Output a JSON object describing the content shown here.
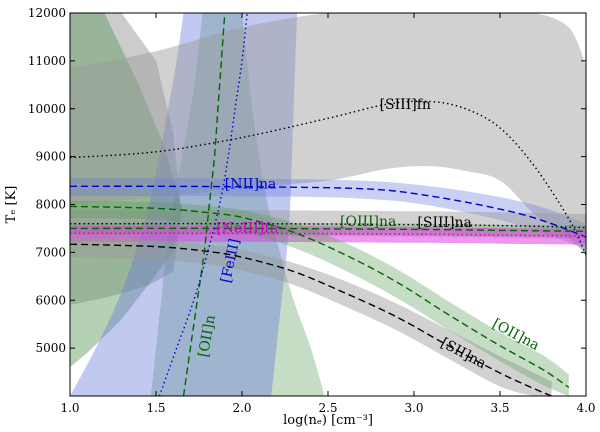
{
  "chart_data": {
    "type": "line",
    "title": "",
    "xlabel": "log(nₑ) [cm⁻³]",
    "ylabel": "Tₑ [K]",
    "xlim": [
      1.0,
      4.0
    ],
    "ylim": [
      4000,
      12000
    ],
    "xticks": [
      1.0,
      1.5,
      2.0,
      2.5,
      3.0,
      3.5,
      4.0
    ],
    "xtick_labels": [
      "1.0",
      "1.5",
      "2.0",
      "2.5",
      "3.0",
      "3.5",
      "4.0"
    ],
    "yticks": [
      5000,
      6000,
      7000,
      8000,
      9000,
      10000,
      11000,
      12000
    ],
    "ytick_labels": [
      "5000",
      "6000",
      "7000",
      "8000",
      "9000",
      "10000",
      "11000",
      "12000"
    ],
    "grid": false,
    "colors": {
      "gray": "#000000",
      "green": "#006600",
      "blue": "#0000cc",
      "magenta": "#cc00cc",
      "gray_band": "#999999",
      "green_band": "#5a9a5a",
      "blue_band": "#6677dd",
      "magenta_band": "#dd44dd"
    },
    "horizontal_series": [
      {
        "name": "[SIII]fn",
        "color": "gray",
        "dash": "dotted",
        "x": [
          1.0,
          1.5,
          2.0,
          2.5,
          2.85,
          3.1,
          3.3,
          3.5,
          3.7,
          3.9,
          4.0
        ],
        "y": [
          8980,
          9100,
          9400,
          9800,
          10100,
          10150,
          10000,
          9600,
          8800,
          7700,
          6950
        ],
        "upper": [
          10850,
          11200,
          11700,
          12000,
          12000,
          12000,
          12000,
          12000,
          12000,
          11700,
          10900
        ],
        "lower": [
          8000,
          8150,
          8350,
          8500,
          8750,
          8800,
          8700,
          8500,
          7800,
          7300,
          6950
        ]
      },
      {
        "name": "[NII]na",
        "color": "blue",
        "dash": "dashed",
        "x": [
          1.0,
          1.5,
          2.0,
          2.5,
          2.8,
          3.0,
          3.3,
          3.6,
          3.8,
          4.0
        ],
        "y": [
          8380,
          8380,
          8370,
          8350,
          8310,
          8230,
          8050,
          7820,
          7600,
          7320
        ],
        "upper": [
          8550,
          8550,
          8540,
          8520,
          8480,
          8420,
          8280,
          8080,
          7880,
          7600
        ],
        "lower": [
          8180,
          8180,
          8170,
          8150,
          8100,
          8030,
          7840,
          7580,
          7350,
          7050
        ]
      },
      {
        "name": "[SIII]na",
        "color": "gray",
        "dash": "dotted",
        "x": [
          1.0,
          2.0,
          3.0,
          3.5,
          4.0
        ],
        "y": [
          7600,
          7600,
          7580,
          7560,
          7520
        ],
        "upper": [
          7880,
          7880,
          7860,
          7840,
          7800
        ],
        "lower": [
          7350,
          7350,
          7330,
          7310,
          7280
        ]
      },
      {
        "name": "[OIII]na",
        "color": "green",
        "dash": "dashed",
        "x": [
          1.0,
          2.0,
          3.0,
          3.5,
          4.0
        ],
        "y": [
          7500,
          7500,
          7480,
          7460,
          7440
        ],
        "upper": [
          7620,
          7620,
          7600,
          7580,
          7560
        ],
        "lower": [
          7380,
          7380,
          7360,
          7340,
          7320
        ]
      },
      {
        "name": "[NeIII]fn",
        "color": "magenta",
        "dash": "dotted",
        "x": [
          1.0,
          2.0,
          3.0,
          3.5,
          4.0
        ],
        "y": [
          7400,
          7400,
          7380,
          7360,
          7340
        ],
        "upper": [
          7550,
          7550,
          7530,
          7510,
          7490
        ],
        "lower": [
          7220,
          7220,
          7200,
          7180,
          7160
        ]
      },
      {
        "name": "[SII]na",
        "color": "gray",
        "dash": "dashed",
        "x": [
          1.0,
          1.5,
          1.8,
          2.0,
          2.3,
          2.6,
          2.9,
          3.2,
          3.5,
          3.7,
          3.8
        ],
        "y": [
          7170,
          7120,
          7020,
          6900,
          6600,
          6150,
          5650,
          5050,
          4480,
          4150,
          4000
        ],
        "upper": [
          7290,
          7250,
          7160,
          7050,
          6780,
          6400,
          5930,
          5380,
          4830,
          4480,
          4300
        ],
        "lower": [
          6900,
          6850,
          6750,
          6620,
          6320,
          5870,
          5370,
          4780,
          4200,
          4000,
          4000
        ]
      },
      {
        "name": "[OII]na",
        "color": "green",
        "dash": "dashed",
        "x": [
          1.0,
          1.5,
          1.8,
          2.0,
          2.3,
          2.6,
          2.9,
          3.2,
          3.5,
          3.75,
          3.9
        ],
        "y": [
          7960,
          7920,
          7830,
          7730,
          7420,
          6950,
          6380,
          5700,
          5050,
          4550,
          4180
        ],
        "upper": [
          8080,
          8050,
          7970,
          7880,
          7620,
          7200,
          6650,
          5980,
          5330,
          4850,
          4450
        ],
        "lower": [
          7720,
          7680,
          7560,
          7430,
          7100,
          6620,
          6050,
          5380,
          4730,
          4230,
          4000
        ]
      }
    ],
    "vertical_series": [
      {
        "name": "[OII]n",
        "color": "green",
        "dash": "dashed",
        "t": [
          4000,
          5000,
          6000,
          7000,
          8000,
          9000,
          10000,
          11000,
          12000
        ],
        "x": [
          1.66,
          1.7,
          1.74,
          1.78,
          1.81,
          1.84,
          1.86,
          1.88,
          1.9
        ],
        "left": [
          1.47,
          1.5,
          1.53,
          1.56,
          1.6,
          1.65,
          1.7,
          1.74,
          1.77
        ],
        "right": [
          2.48,
          2.4,
          2.3,
          2.22,
          2.15,
          2.1,
          2.06,
          2.03,
          2.0
        ]
      },
      {
        "name": "[FeIII]",
        "color": "blue",
        "dash": "dotted",
        "t": [
          4000,
          5000,
          6000,
          7000,
          8000,
          9000,
          10000,
          11000,
          12000
        ],
        "x": [
          1.52,
          1.62,
          1.72,
          1.8,
          1.87,
          1.92,
          1.96,
          2.0,
          2.03
        ],
        "left": [
          1.0,
          1.15,
          1.28,
          1.38,
          1.46,
          1.52,
          1.57,
          1.62,
          1.66
        ],
        "right": [
          2.17,
          2.2,
          2.23,
          2.26,
          2.28,
          2.29,
          2.3,
          2.31,
          2.32
        ]
      }
    ],
    "wedge_gray": {
      "name": "[SII]na wide",
      "x": [
        1.0,
        1.3,
        1.5,
        1.6,
        1.65,
        1.6,
        1.45,
        1.2,
        1.0
      ],
      "y": [
        12000,
        12000,
        11000,
        9500,
        7800,
        6600,
        6300,
        6050,
        5900
      ]
    },
    "wedge_green": {
      "name": "[OII]n wide",
      "x": [
        1.0,
        1.2,
        1.4,
        1.55,
        1.65,
        1.6,
        1.45,
        1.3,
        1.1,
        1.0
      ],
      "y": [
        12000,
        12000,
        10500,
        9200,
        7900,
        7000,
        6300,
        5600,
        4900,
        4600
      ]
    },
    "annotations": [
      {
        "text": "[SIII]fn",
        "x": 2.8,
        "y": 10000,
        "color": "gray",
        "rotate": 0
      },
      {
        "text": "[NII]na",
        "x": 1.9,
        "y": 8330,
        "color": "blue",
        "rotate": 0
      },
      {
        "text": "[OIII]na",
        "x": 2.57,
        "y": 7550,
        "color": "green",
        "rotate": 0
      },
      {
        "text": "[SIII]na",
        "x": 3.02,
        "y": 7530,
        "color": "gray",
        "rotate": 0
      },
      {
        "text": "[NeIII]fn",
        "x": 1.85,
        "y": 7420,
        "color": "magenta",
        "rotate": 0
      },
      {
        "text": "[FeIII]",
        "x": 1.93,
        "y": 6350,
        "color": "blue",
        "rotate": -78
      },
      {
        "text": "[OII]n",
        "x": 1.8,
        "y": 4800,
        "color": "green",
        "rotate": -80
      },
      {
        "text": "[SII]na",
        "x": 3.15,
        "y": 5050,
        "color": "gray",
        "rotate": 28
      },
      {
        "text": "[OII]na",
        "x": 3.45,
        "y": 5450,
        "color": "green",
        "rotate": 28
      }
    ]
  }
}
